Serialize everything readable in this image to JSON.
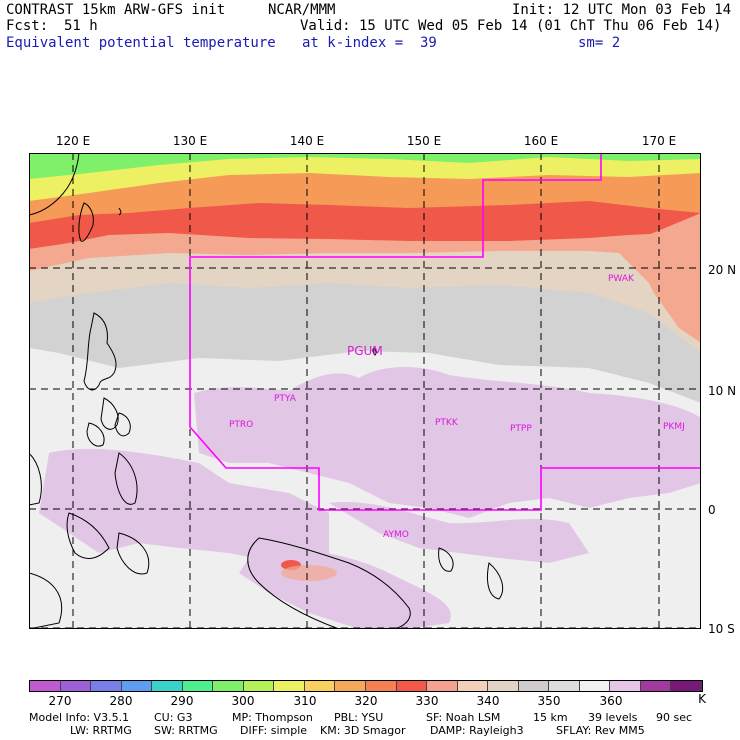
{
  "header": {
    "model_title": "CONTRAST 15km ARW-GFS init",
    "org": "NCAR/MMM",
    "init": "Init: 12 UTC Mon 03 Feb 14",
    "fcst_label": "Fcst:",
    "fcst_hours": "51 h",
    "valid": "Valid: 15 UTC Wed 05 Feb 14 (01 ChT Thu 06 Feb 14)",
    "field": "Equivalent potential temperature",
    "level": "at k-index =  39",
    "smoothing": "sm= 2"
  },
  "map": {
    "longitude_labels": [
      "120 E",
      "130 E",
      "140 E",
      "150 E",
      "160 E",
      "170 E"
    ],
    "latitude_labels": [
      "20 N",
      "10 N",
      "0",
      "10 S"
    ],
    "stations": [
      {
        "id": "PGUM",
        "large": true
      },
      {
        "id": "PTYA",
        "large": false
      },
      {
        "id": "PTRO",
        "large": false
      },
      {
        "id": "PTKK",
        "large": false
      },
      {
        "id": "PTPP",
        "large": false
      },
      {
        "id": "PKMJ",
        "large": false
      },
      {
        "id": "PWAK",
        "large": false
      },
      {
        "id": "AYMO",
        "large": false
      }
    ]
  },
  "colorbar": {
    "unit": "K",
    "ticks": [
      "270",
      "280",
      "290",
      "300",
      "310",
      "320",
      "330",
      "340",
      "350",
      "360"
    ],
    "colors": [
      "#c05ad0",
      "#9d60d6",
      "#7a7ee8",
      "#5e9ef0",
      "#3ad2c8",
      "#4ef08e",
      "#7ef06a",
      "#b4f05a",
      "#eef064",
      "#f8d060",
      "#f6a85a",
      "#f68052",
      "#f4584a",
      "#f6a090",
      "#f2d0bc",
      "#e2d4c4",
      "#d0cccc",
      "#dcdcdc",
      "#f0f0f0",
      "#e6c6e6",
      "#a03aa0",
      "#781878"
    ]
  },
  "footer": {
    "line1": [
      "Model Info: V3.5.1",
      "CU: G3",
      "MP: Thompson",
      "PBL: YSU",
      "SF: Noah LSM",
      "15 km",
      "39 levels",
      "90 sec"
    ],
    "line2": [
      "LW: RRTMG",
      "SW: RRTMG",
      "DIFF: simple",
      "KM: 3D Smagor",
      "DAMP: Rayleigh3",
      "SFLAY: Rev MM5"
    ]
  }
}
